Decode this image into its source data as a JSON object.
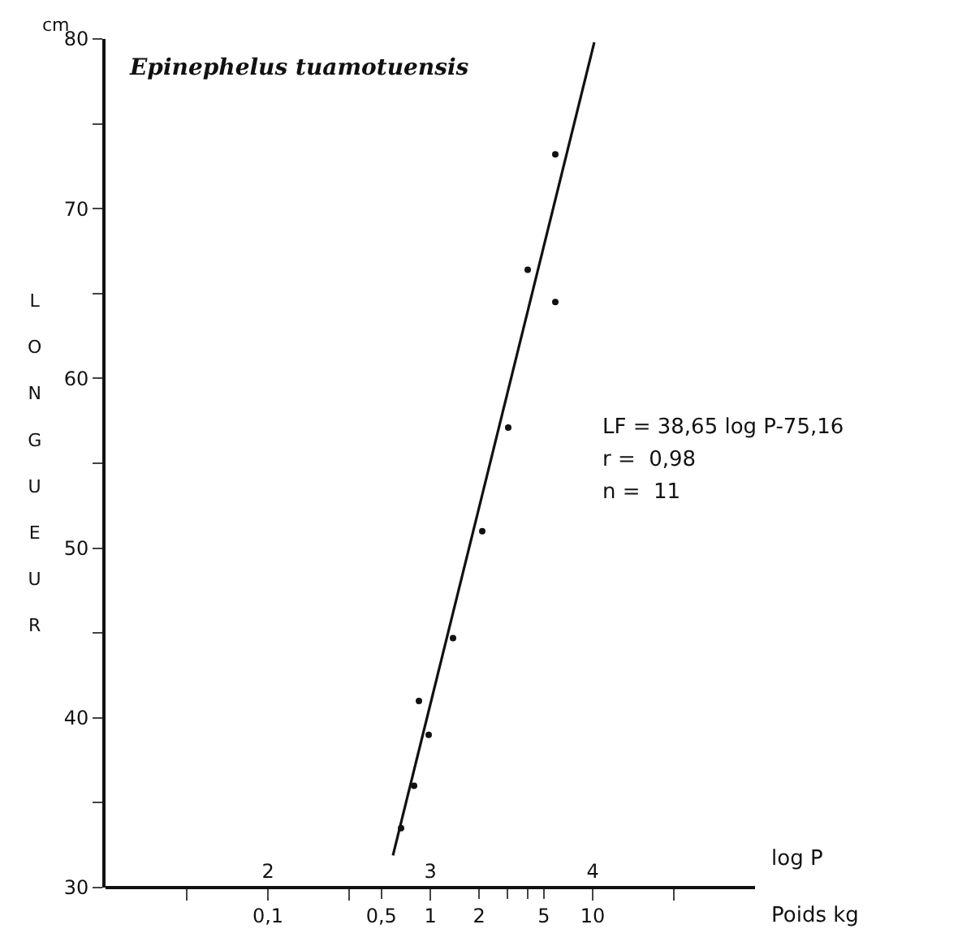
{
  "chart_data": {
    "type": "scatter",
    "title": "Epinephelus tuamotuensis",
    "xlabel": "log P",
    "ylabel": "LONGUEUR",
    "x2label": "Poids kg",
    "annotations": [
      "cm",
      "LF = 38,65 log P-75,16",
      "r =  0,98",
      "n =  11"
    ],
    "series": [
      {
        "color": "#111111",
        "marker": "circle",
        "x": [
          2.82,
          2.9,
          2.99,
          2.93,
          3.14,
          3.32,
          3.48,
          3.77,
          3.6,
          3.77
        ],
        "values": [
          33.5,
          36.0,
          39.0,
          41.0,
          44.7,
          51.0,
          57.1,
          64.5,
          66.4,
          73.2
        ]
      },
      {
        "type": "line",
        "color": "#111111",
        "marker": "none",
        "line_style": "solid",
        "x": [
          2.77,
          4.01
        ],
        "values": [
          31.9,
          79.8
        ]
      }
    ],
    "xlim": [
      1,
      5
    ],
    "xticks": [
      {
        "value": 1.5,
        "label": null
      },
      2,
      {
        "value": 2.5,
        "label": null
      },
      3,
      4,
      {
        "value": 4.5,
        "label": null
      }
    ],
    "x2lim": [
      0.01,
      100
    ],
    "log": "x2",
    "x2ticks": [
      {
        "value": 0.1,
        "label": "0,1"
      },
      {
        "value": 0.5,
        "label": "0,5"
      },
      1,
      2,
      {
        "value": 3,
        "label": null
      },
      {
        "value": 4,
        "label": null
      },
      5,
      10
    ],
    "ylim": [
      30,
      80
    ],
    "yticks": [
      30,
      {
        "value": 35,
        "label": null
      },
      40,
      {
        "value": 45,
        "label": null
      },
      50,
      {
        "value": 55,
        "label": null
      },
      60,
      {
        "value": 65,
        "label": null
      },
      70,
      {
        "value": 75,
        "label": null
      },
      80
    ]
  }
}
